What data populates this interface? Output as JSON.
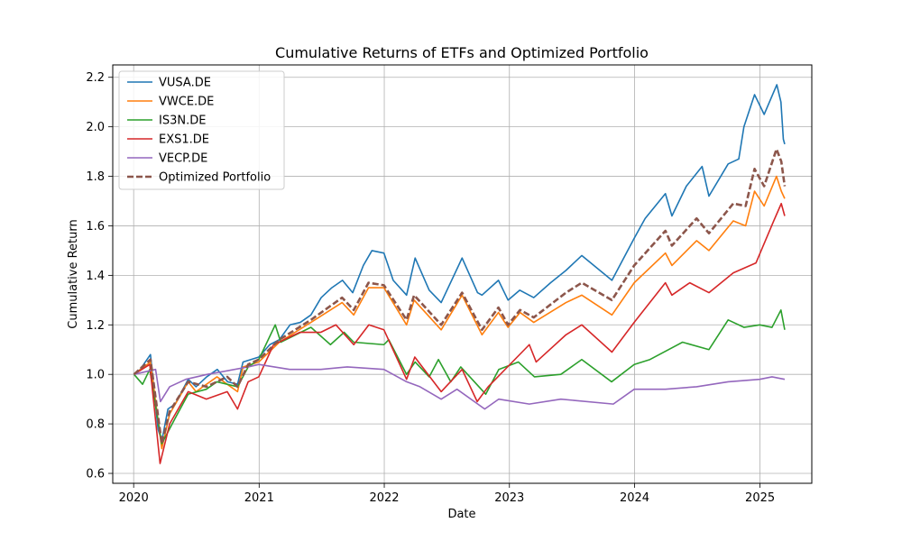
{
  "chart_data": {
    "type": "line",
    "title": "Cumulative Returns of ETFs and Optimized Portfolio",
    "xlabel": "Date",
    "ylabel": "Cumulative Return",
    "xlim": [
      "2019-11-01",
      "2025-06-01"
    ],
    "ylim": [
      0.56,
      2.25
    ],
    "x_ticks": [
      "2020-01-01",
      "2021-01-01",
      "2022-01-01",
      "2023-01-01",
      "2024-01-01",
      "2025-01-01"
    ],
    "x_tick_labels": [
      "2020",
      "2021",
      "2022",
      "2023",
      "2024",
      "2025"
    ],
    "y_ticks": [
      0.6,
      0.8,
      1.0,
      1.2,
      1.4,
      1.6,
      1.8,
      2.0,
      2.2
    ],
    "y_tick_labels": [
      "0.6",
      "0.8",
      "1.0",
      "1.2",
      "1.4",
      "1.6",
      "1.8",
      "2.0",
      "2.2"
    ],
    "grid": true,
    "legend_position": "upper-left",
    "series": [
      {
        "name": "VUSA.DE",
        "color": "#1f77b4",
        "dash": "solid",
        "points": [
          [
            "2020-01-02",
            1.0
          ],
          [
            "2020-01-20",
            1.02
          ],
          [
            "2020-02-19",
            1.08
          ],
          [
            "2020-03-01",
            0.93
          ],
          [
            "2020-03-12",
            0.78
          ],
          [
            "2020-03-23",
            0.73
          ],
          [
            "2020-04-10",
            0.86
          ],
          [
            "2020-05-01",
            0.88
          ],
          [
            "2020-06-08",
            0.98
          ],
          [
            "2020-07-01",
            0.95
          ],
          [
            "2020-08-01",
            0.99
          ],
          [
            "2020-09-01",
            1.02
          ],
          [
            "2020-10-01",
            0.97
          ],
          [
            "2020-10-30",
            0.96
          ],
          [
            "2020-11-15",
            1.05
          ],
          [
            "2020-12-31",
            1.07
          ],
          [
            "2021-02-01",
            1.12
          ],
          [
            "2021-03-01",
            1.14
          ],
          [
            "2021-04-01",
            1.2
          ],
          [
            "2021-05-01",
            1.21
          ],
          [
            "2021-06-01",
            1.24
          ],
          [
            "2021-07-01",
            1.31
          ],
          [
            "2021-08-01",
            1.35
          ],
          [
            "2021-09-01",
            1.38
          ],
          [
            "2021-10-01",
            1.33
          ],
          [
            "2021-11-01",
            1.44
          ],
          [
            "2021-11-26",
            1.5
          ],
          [
            "2021-12-31",
            1.49
          ],
          [
            "2022-01-27",
            1.38
          ],
          [
            "2022-03-07",
            1.32
          ],
          [
            "2022-04-01",
            1.47
          ],
          [
            "2022-05-12",
            1.34
          ],
          [
            "2022-06-16",
            1.29
          ],
          [
            "2022-08-16",
            1.47
          ],
          [
            "2022-09-30",
            1.33
          ],
          [
            "2022-10-13",
            1.32
          ],
          [
            "2022-11-30",
            1.38
          ],
          [
            "2022-12-28",
            1.3
          ],
          [
            "2023-01-31",
            1.34
          ],
          [
            "2023-03-13",
            1.31
          ],
          [
            "2023-05-01",
            1.37
          ],
          [
            "2023-06-15",
            1.42
          ],
          [
            "2023-07-31",
            1.48
          ],
          [
            "2023-10-27",
            1.38
          ],
          [
            "2023-12-31",
            1.55
          ],
          [
            "2024-02-01",
            1.63
          ],
          [
            "2024-03-31",
            1.73
          ],
          [
            "2024-04-19",
            1.64
          ],
          [
            "2024-05-31",
            1.76
          ],
          [
            "2024-07-16",
            1.84
          ],
          [
            "2024-08-05",
            1.72
          ],
          [
            "2024-09-30",
            1.85
          ],
          [
            "2024-10-31",
            1.87
          ],
          [
            "2024-11-15",
            2.0
          ],
          [
            "2024-12-16",
            2.13
          ],
          [
            "2025-01-13",
            2.05
          ],
          [
            "2025-02-19",
            2.17
          ],
          [
            "2025-03-03",
            2.1
          ],
          [
            "2025-03-10",
            1.95
          ],
          [
            "2025-03-14",
            1.93
          ]
        ]
      },
      {
        "name": "VWCE.DE",
        "color": "#ff7f0e",
        "dash": "solid",
        "points": [
          [
            "2020-01-02",
            1.0
          ],
          [
            "2020-02-19",
            1.05
          ],
          [
            "2020-03-23",
            0.7
          ],
          [
            "2020-04-15",
            0.84
          ],
          [
            "2020-06-08",
            0.97
          ],
          [
            "2020-07-01",
            0.93
          ],
          [
            "2020-08-31",
            0.99
          ],
          [
            "2020-10-30",
            0.93
          ],
          [
            "2020-11-15",
            1.03
          ],
          [
            "2020-12-31",
            1.05
          ],
          [
            "2021-03-01",
            1.13
          ],
          [
            "2021-06-01",
            1.21
          ],
          [
            "2021-08-31",
            1.29
          ],
          [
            "2021-10-04",
            1.24
          ],
          [
            "2021-11-16",
            1.35
          ],
          [
            "2021-12-31",
            1.35
          ],
          [
            "2022-03-07",
            1.2
          ],
          [
            "2022-03-29",
            1.3
          ],
          [
            "2022-06-16",
            1.18
          ],
          [
            "2022-08-16",
            1.32
          ],
          [
            "2022-10-13",
            1.16
          ],
          [
            "2022-11-30",
            1.25
          ],
          [
            "2022-12-28",
            1.19
          ],
          [
            "2023-02-01",
            1.25
          ],
          [
            "2023-03-13",
            1.21
          ],
          [
            "2023-06-15",
            1.29
          ],
          [
            "2023-07-31",
            1.32
          ],
          [
            "2023-10-27",
            1.24
          ],
          [
            "2023-12-31",
            1.37
          ],
          [
            "2024-03-31",
            1.49
          ],
          [
            "2024-04-19",
            1.44
          ],
          [
            "2024-06-30",
            1.54
          ],
          [
            "2024-08-05",
            1.5
          ],
          [
            "2024-10-15",
            1.62
          ],
          [
            "2024-11-20",
            1.6
          ],
          [
            "2024-12-16",
            1.74
          ],
          [
            "2025-01-13",
            1.68
          ],
          [
            "2025-02-18",
            1.8
          ],
          [
            "2025-03-04",
            1.74
          ],
          [
            "2025-03-14",
            1.71
          ]
        ]
      },
      {
        "name": "IS3N.DE",
        "color": "#2ca02c",
        "dash": "solid",
        "points": [
          [
            "2020-01-02",
            1.0
          ],
          [
            "2020-01-27",
            0.96
          ],
          [
            "2020-02-17",
            1.02
          ],
          [
            "2020-03-23",
            0.72
          ],
          [
            "2020-04-30",
            0.82
          ],
          [
            "2020-06-08",
            0.92
          ],
          [
            "2020-07-31",
            0.94
          ],
          [
            "2020-08-31",
            0.97
          ],
          [
            "2020-10-30",
            0.95
          ],
          [
            "2020-11-30",
            1.03
          ],
          [
            "2020-12-31",
            1.06
          ],
          [
            "2021-02-17",
            1.2
          ],
          [
            "2021-03-05",
            1.13
          ],
          [
            "2021-06-01",
            1.19
          ],
          [
            "2021-07-28",
            1.12
          ],
          [
            "2021-09-06",
            1.17
          ],
          [
            "2021-10-04",
            1.13
          ],
          [
            "2021-12-31",
            1.12
          ],
          [
            "2022-01-14",
            1.14
          ],
          [
            "2022-03-07",
            1.0
          ],
          [
            "2022-04-01",
            1.05
          ],
          [
            "2022-05-12",
            0.99
          ],
          [
            "2022-06-08",
            1.06
          ],
          [
            "2022-07-14",
            0.97
          ],
          [
            "2022-08-12",
            1.03
          ],
          [
            "2022-10-24",
            0.92
          ],
          [
            "2022-12-01",
            1.02
          ],
          [
            "2023-01-27",
            1.05
          ],
          [
            "2023-03-15",
            0.99
          ],
          [
            "2023-05-31",
            1.0
          ],
          [
            "2023-07-31",
            1.06
          ],
          [
            "2023-10-26",
            0.97
          ],
          [
            "2023-12-31",
            1.04
          ],
          [
            "2024-02-15",
            1.06
          ],
          [
            "2024-05-20",
            1.13
          ],
          [
            "2024-08-05",
            1.1
          ],
          [
            "2024-09-30",
            1.22
          ],
          [
            "2024-11-15",
            1.19
          ],
          [
            "2024-12-31",
            1.2
          ],
          [
            "2025-02-05",
            1.19
          ],
          [
            "2025-03-03",
            1.26
          ],
          [
            "2025-03-14",
            1.18
          ]
        ]
      },
      {
        "name": "EXS1.DE",
        "color": "#d62728",
        "dash": "solid",
        "points": [
          [
            "2020-01-02",
            1.0
          ],
          [
            "2020-02-17",
            1.04
          ],
          [
            "2020-03-18",
            0.64
          ],
          [
            "2020-04-15",
            0.8
          ],
          [
            "2020-06-08",
            0.93
          ],
          [
            "2020-07-31",
            0.9
          ],
          [
            "2020-09-30",
            0.93
          ],
          [
            "2020-10-30",
            0.86
          ],
          [
            "2020-11-30",
            0.97
          ],
          [
            "2020-12-31",
            0.99
          ],
          [
            "2021-02-12",
            1.12
          ],
          [
            "2021-04-30",
            1.17
          ],
          [
            "2021-06-30",
            1.17
          ],
          [
            "2021-08-13",
            1.2
          ],
          [
            "2021-10-04",
            1.12
          ],
          [
            "2021-11-17",
            1.2
          ],
          [
            "2021-12-31",
            1.18
          ],
          [
            "2022-03-07",
            0.98
          ],
          [
            "2022-03-31",
            1.07
          ],
          [
            "2022-06-16",
            0.93
          ],
          [
            "2022-08-16",
            1.02
          ],
          [
            "2022-09-29",
            0.89
          ],
          [
            "2022-10-31",
            0.95
          ],
          [
            "2023-02-28",
            1.12
          ],
          [
            "2023-03-20",
            1.05
          ],
          [
            "2023-06-15",
            1.16
          ],
          [
            "2023-07-31",
            1.2
          ],
          [
            "2023-10-27",
            1.09
          ],
          [
            "2023-12-31",
            1.21
          ],
          [
            "2024-03-31",
            1.37
          ],
          [
            "2024-04-19",
            1.32
          ],
          [
            "2024-06-10",
            1.37
          ],
          [
            "2024-08-05",
            1.33
          ],
          [
            "2024-10-15",
            1.41
          ],
          [
            "2024-12-20",
            1.45
          ],
          [
            "2025-02-10",
            1.62
          ],
          [
            "2025-03-04",
            1.69
          ],
          [
            "2025-03-14",
            1.64
          ]
        ]
      },
      {
        "name": "VECP.DE",
        "color": "#9467bd",
        "dash": "solid",
        "points": [
          [
            "2020-01-02",
            1.0
          ],
          [
            "2020-03-05",
            1.02
          ],
          [
            "2020-03-19",
            0.89
          ],
          [
            "2020-04-15",
            0.95
          ],
          [
            "2020-06-01",
            0.98
          ],
          [
            "2020-08-03",
            1.0
          ],
          [
            "2020-11-30",
            1.03
          ],
          [
            "2020-12-31",
            1.04
          ],
          [
            "2021-03-31",
            1.02
          ],
          [
            "2021-06-30",
            1.02
          ],
          [
            "2021-09-15",
            1.03
          ],
          [
            "2021-12-31",
            1.02
          ],
          [
            "2022-03-07",
            0.97
          ],
          [
            "2022-04-15",
            0.95
          ],
          [
            "2022-06-16",
            0.9
          ],
          [
            "2022-08-01",
            0.94
          ],
          [
            "2022-10-21",
            0.86
          ],
          [
            "2022-12-01",
            0.9
          ],
          [
            "2023-02-28",
            0.88
          ],
          [
            "2023-05-31",
            0.9
          ],
          [
            "2023-10-31",
            0.88
          ],
          [
            "2023-12-31",
            0.94
          ],
          [
            "2024-03-31",
            0.94
          ],
          [
            "2024-06-30",
            0.95
          ],
          [
            "2024-09-30",
            0.97
          ],
          [
            "2024-12-31",
            0.98
          ],
          [
            "2025-02-05",
            0.99
          ],
          [
            "2025-03-14",
            0.98
          ]
        ]
      },
      {
        "name": "Optimized Portfolio",
        "color": "#8c564b",
        "dash": "dashed",
        "points": [
          [
            "2020-01-02",
            1.0
          ],
          [
            "2020-02-19",
            1.06
          ],
          [
            "2020-03-23",
            0.72
          ],
          [
            "2020-04-15",
            0.85
          ],
          [
            "2020-06-08",
            0.97
          ],
          [
            "2020-07-31",
            0.95
          ],
          [
            "2020-09-30",
            0.99
          ],
          [
            "2020-10-30",
            0.95
          ],
          [
            "2020-11-30",
            1.04
          ],
          [
            "2020-12-31",
            1.06
          ],
          [
            "2021-03-01",
            1.14
          ],
          [
            "2021-06-01",
            1.22
          ],
          [
            "2021-08-31",
            1.31
          ],
          [
            "2021-10-04",
            1.26
          ],
          [
            "2021-11-16",
            1.37
          ],
          [
            "2021-12-31",
            1.36
          ],
          [
            "2022-03-07",
            1.22
          ],
          [
            "2022-03-29",
            1.32
          ],
          [
            "2022-06-16",
            1.2
          ],
          [
            "2022-08-16",
            1.33
          ],
          [
            "2022-10-13",
            1.18
          ],
          [
            "2022-11-30",
            1.27
          ],
          [
            "2022-12-28",
            1.2
          ],
          [
            "2023-02-01",
            1.26
          ],
          [
            "2023-03-13",
            1.23
          ],
          [
            "2023-06-15",
            1.33
          ],
          [
            "2023-07-31",
            1.37
          ],
          [
            "2023-10-27",
            1.3
          ],
          [
            "2023-12-31",
            1.44
          ],
          [
            "2024-03-31",
            1.58
          ],
          [
            "2024-04-19",
            1.52
          ],
          [
            "2024-06-30",
            1.63
          ],
          [
            "2024-08-05",
            1.57
          ],
          [
            "2024-10-15",
            1.69
          ],
          [
            "2024-11-20",
            1.68
          ],
          [
            "2024-12-16",
            1.83
          ],
          [
            "2025-01-13",
            1.76
          ],
          [
            "2025-02-18",
            1.91
          ],
          [
            "2025-03-04",
            1.86
          ],
          [
            "2025-03-14",
            1.76
          ]
        ]
      }
    ]
  }
}
